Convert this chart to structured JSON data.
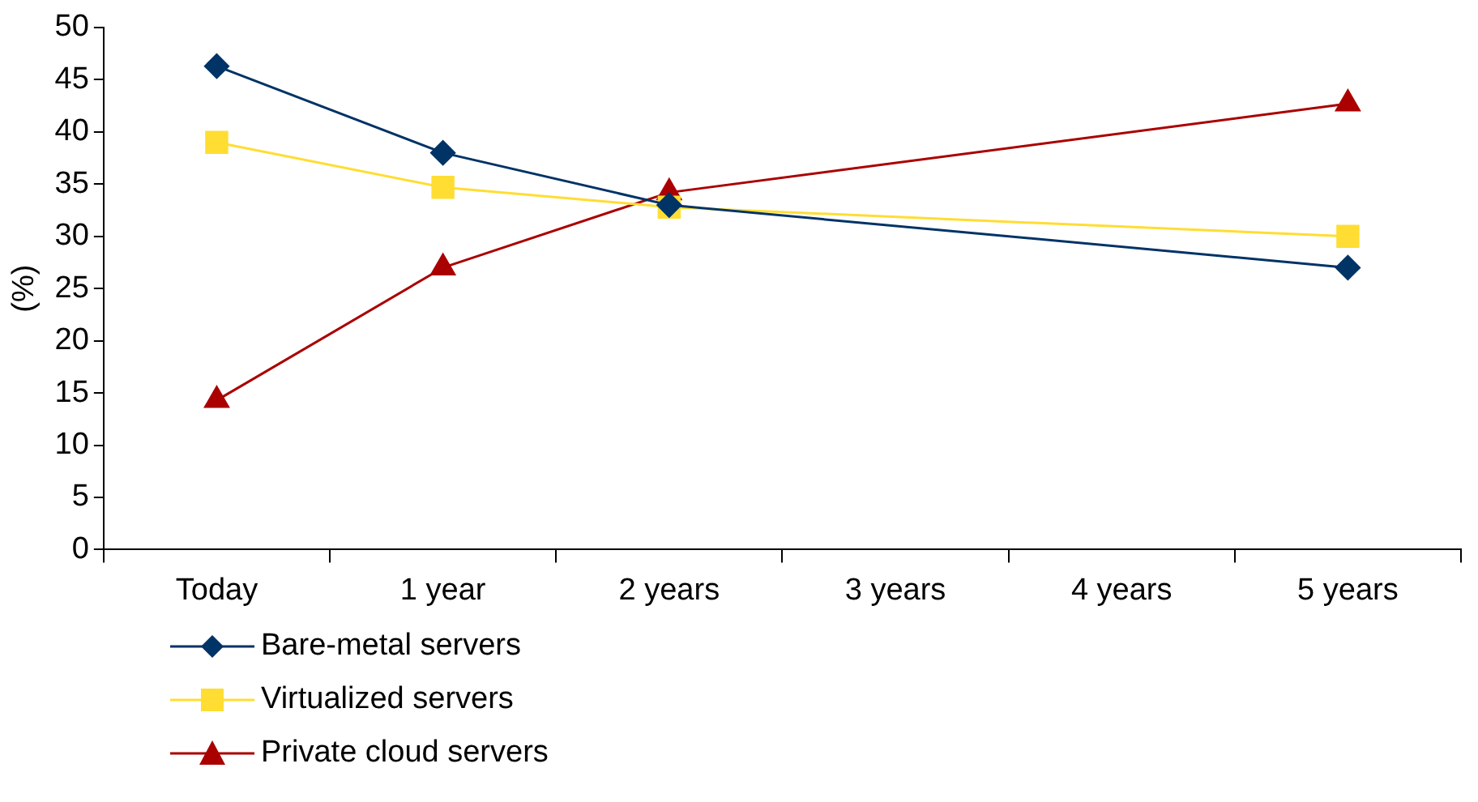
{
  "chart_data": {
    "type": "line",
    "ylabel": "(%)",
    "categories": [
      "Today",
      "1 year",
      "2 years",
      "3 years",
      "4 years",
      "5 years"
    ],
    "ylim": [
      0,
      50
    ],
    "yticks": [
      0,
      5,
      10,
      15,
      20,
      25,
      30,
      35,
      40,
      45,
      50
    ],
    "grid": false,
    "legend": "bottom left",
    "series": [
      {
        "name": "Bare-metal servers",
        "color": "#003366",
        "marker": "diamond",
        "values": [
          46.3,
          38,
          33,
          null,
          null,
          27
        ]
      },
      {
        "name": "Virtualized servers",
        "color": "#ffdd33",
        "marker": "square",
        "values": [
          39,
          34.7,
          32.8,
          null,
          null,
          30
        ]
      },
      {
        "name": "Private cloud servers",
        "color": "#aa0000",
        "marker": "triangle",
        "values": [
          14.3,
          27,
          34.2,
          null,
          null,
          42.7
        ]
      }
    ]
  }
}
